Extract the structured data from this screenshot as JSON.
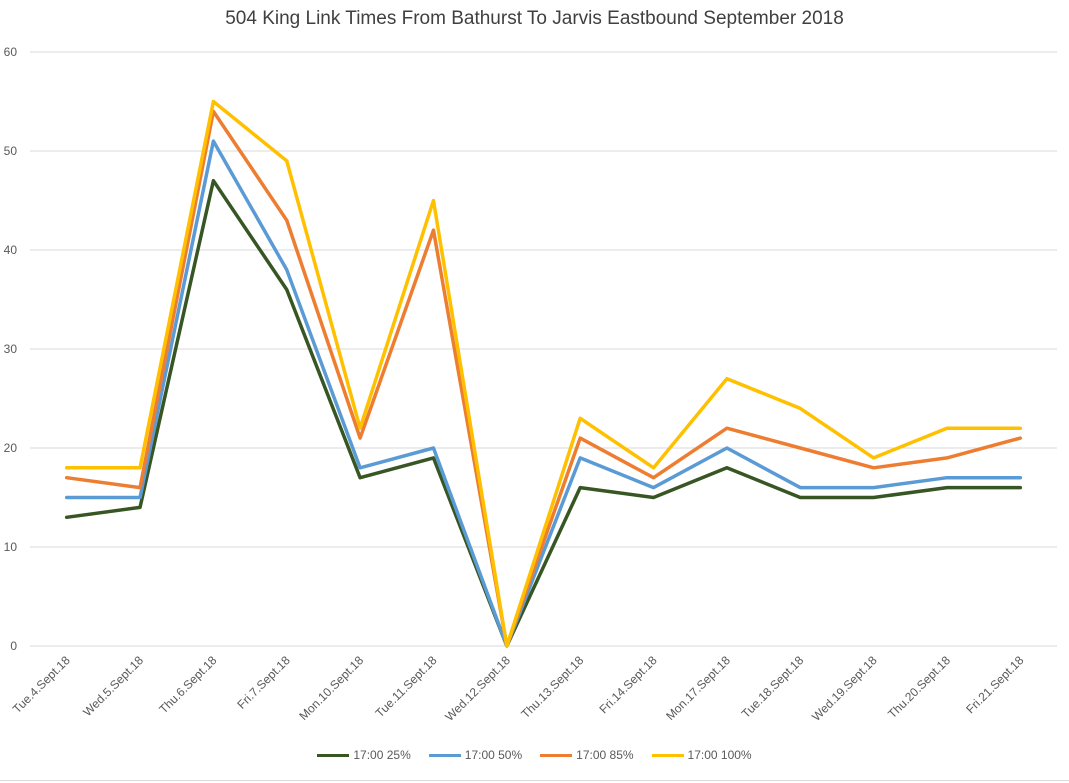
{
  "chart_data": {
    "type": "line",
    "title": "504 King Link Times From Bathurst To Jarvis Eastbound September 2018",
    "xlabel": "",
    "ylabel": "",
    "ylim": [
      0,
      60
    ],
    "yticks": [
      0,
      10,
      20,
      30,
      40,
      50,
      60
    ],
    "grid": true,
    "legend_position": "bottom",
    "categories": [
      "Tue.4.Sept.18",
      "Wed.5.Sept.18",
      "Thu.6.Sept.18",
      "Fri.7.Sept.18",
      "Mon.10.Sept.18",
      "Tue.11.Sept.18",
      "Wed.12.Sept.18",
      "Thu.13.Sept.18",
      "Fri.14.Sept.18",
      "Mon.17.Sept.18",
      "Tue.18.Sept.18",
      "Wed.19.Sept.18",
      "Thu.20.Sept.18",
      "Fri.21.Sept.18"
    ],
    "series": [
      {
        "name": "17:00 25%",
        "color": "#375623",
        "values": [
          13,
          14,
          47,
          36,
          17,
          19,
          0,
          16,
          15,
          18,
          15,
          15,
          16,
          16
        ]
      },
      {
        "name": "17:00 50%",
        "color": "#5b9bd5",
        "values": [
          15,
          15,
          51,
          38,
          18,
          20,
          0,
          19,
          16,
          20,
          16,
          16,
          17,
          17
        ]
      },
      {
        "name": "17:00 85%",
        "color": "#ed7d31",
        "values": [
          17,
          16,
          54,
          43,
          21,
          42,
          0,
          21,
          17,
          22,
          20,
          18,
          19,
          21
        ]
      },
      {
        "name": "17:00 100%",
        "color": "#ffc000",
        "values": [
          18,
          18,
          55,
          49,
          22,
          45,
          0,
          23,
          18,
          27,
          24,
          19,
          22,
          22
        ]
      }
    ]
  }
}
